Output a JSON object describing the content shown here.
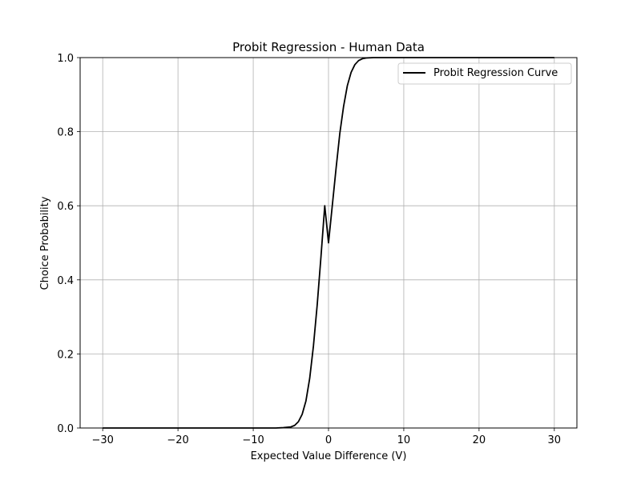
{
  "chart_data": {
    "type": "line",
    "title": "Probit Regression - Human Data",
    "xlabel": "Expected Value Difference (V)",
    "ylabel": "Choice Probability",
    "xlim": [
      -33,
      33
    ],
    "ylim": [
      0.0,
      1.0
    ],
    "xticks": [
      -30,
      -20,
      -10,
      0,
      10,
      20,
      30
    ],
    "xtick_labels": [
      "−30",
      "−20",
      "−10",
      "0",
      "10",
      "20",
      "30"
    ],
    "yticks": [
      0.0,
      0.2,
      0.4,
      0.6,
      0.8,
      1.0
    ],
    "ytick_labels": [
      "0.0",
      "0.2",
      "0.4",
      "0.6",
      "0.8",
      "1.0"
    ],
    "grid": true,
    "legend_position": "top-right",
    "series": [
      {
        "name": "Probit Regression Curve",
        "color": "#000000",
        "x": [
          -30,
          -20,
          -10,
          -7,
          -6,
          -5,
          -4.5,
          -4,
          -3.5,
          -3,
          -2.5,
          -2,
          -1.5,
          -1,
          -0.5,
          0,
          0.5,
          1,
          1.5,
          2,
          2.5,
          3,
          3.5,
          4,
          4.5,
          5,
          6,
          7,
          10,
          20,
          30
        ],
        "y": [
          0.0,
          0.0,
          0.0,
          0.0,
          0.001,
          0.003,
          0.007,
          0.017,
          0.037,
          0.073,
          0.134,
          0.222,
          0.333,
          0.463,
          0.6,
          0.5,
          0.6,
          0.7,
          0.795,
          0.868,
          0.924,
          0.96,
          0.981,
          0.992,
          0.997,
          0.999,
          1.0,
          1.0,
          1.0,
          1.0,
          1.0
        ]
      }
    ]
  }
}
